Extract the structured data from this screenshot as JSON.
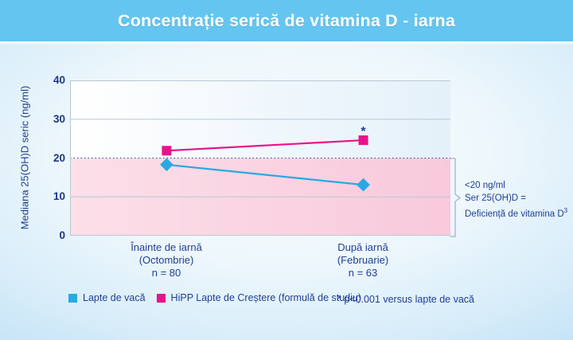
{
  "header": {
    "title": "Concentrație serică de vitamina D - iarna"
  },
  "chart_data": {
    "type": "line",
    "title": "Concentrație serică de vitamina D - iarna",
    "xlabel": "",
    "ylabel": "Mediana 25(OH)D seric (ng/ml)",
    "ylim": [
      0,
      40
    ],
    "yticks": [
      0,
      10,
      20,
      30,
      40
    ],
    "grid": "horizontal",
    "legend_position": "bottom",
    "x_labels": [
      [
        "Înainte de iarnă",
        "(Octombrie)",
        "n = 80"
      ],
      [
        "După iarnă",
        "(Februarie)",
        "n = 63"
      ]
    ],
    "series": [
      {
        "name": "Lapte de vacă",
        "color": "#29a9e1",
        "marker": "diamond",
        "values": [
          18.3,
          13.1
        ],
        "point_annotations": [
          "",
          ""
        ]
      },
      {
        "name": "HiPP Lapte de Creștere (formulă de studiu)",
        "color": "#e8138b",
        "marker": "square",
        "values": [
          21.9,
          24.6
        ],
        "point_annotations": [
          "",
          "*"
        ]
      }
    ],
    "threshold_band": {
      "value": 20,
      "line_style": "dotted",
      "line_color": "#2c3f92",
      "region": "below",
      "band_colors": [
        "#fcdfe9",
        "#f8c9dc"
      ]
    }
  },
  "annotation": {
    "line1": "<20 ng/ml",
    "line2": "Ser 25(OH)D =",
    "line3": "Deficiență de vitamina D",
    "line3_sup": "3"
  },
  "footnote": "* p<0.001 versus lapte de vacă",
  "colors": {
    "header_bg": "#64c6f0",
    "text": "#203f94",
    "gridline": "#b9c8d4",
    "series_blue": "#29a9e1",
    "series_pink": "#e8138b"
  }
}
